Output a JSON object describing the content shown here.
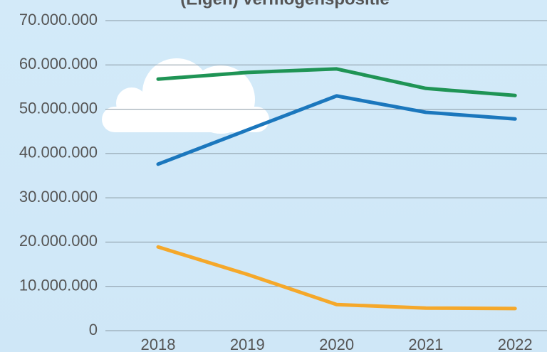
{
  "chart_data": {
    "type": "line",
    "title": "(Eigen) vermogenspositie",
    "categories": [
      "2018",
      "2019",
      "2020",
      "2021",
      "2022"
    ],
    "series": [
      {
        "color": "#1f9455",
        "values": [
          56800000,
          58300000,
          59100000,
          54700000,
          53100000
        ]
      },
      {
        "color": "#1b77bd",
        "values": [
          37600000,
          45300000,
          53000000,
          49300000,
          47800000
        ]
      },
      {
        "color": "#f5a82a",
        "values": [
          18900000,
          12700000,
          5900000,
          5100000,
          5000000
        ]
      }
    ],
    "ylim": [
      0,
      70000000
    ],
    "yticks": [
      0,
      {
        "value": 10000000,
        "label": "10.000.000"
      },
      {
        "value": 20000000,
        "label": "20.000.000"
      },
      {
        "value": 30000000,
        "label": "30.000.000"
      },
      {
        "value": 40000000,
        "label": "40.000.000"
      },
      {
        "value": 50000000,
        "label": "50.000.000"
      },
      {
        "value": 60000000,
        "label": "60.000.000"
      },
      {
        "value": 70000000,
        "label": "70.000.000"
      }
    ],
    "grid": true
  }
}
